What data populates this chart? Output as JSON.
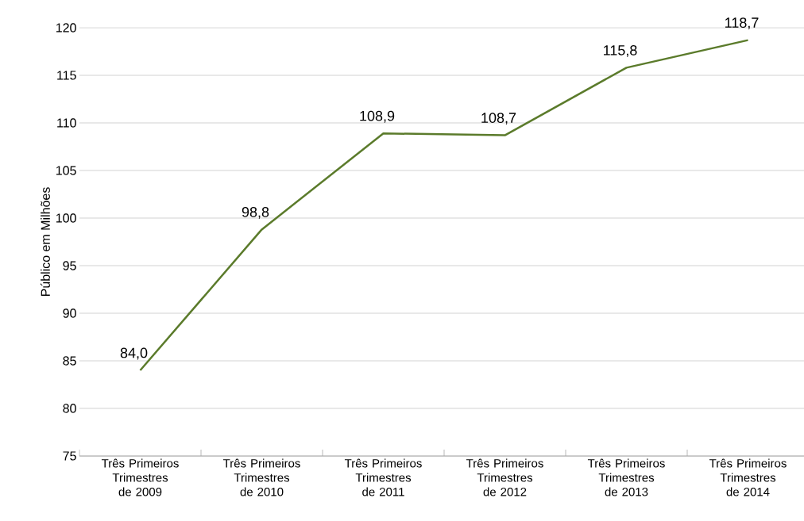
{
  "chart_data": {
    "type": "line",
    "ylabel": "Público em Milhões",
    "categories": [
      "Três Primeiros Trimestres de 2009",
      "Três Primeiros Trimestres de 2010",
      "Três Primeiros Trimestres de 2011",
      "Três Primeiros Trimestres de 2012",
      "Três Primeiros Trimestres de 2013",
      "Três Primeiros Trimestres de 2014"
    ],
    "series": [
      {
        "color": "#5b7b2b",
        "values": [
          84.0,
          98.8,
          108.9,
          108.7,
          115.8,
          118.7
        ],
        "value_labels": [
          "84,0",
          "98,8",
          "108,9",
          "108,7",
          "115,8",
          "118,7"
        ]
      }
    ],
    "ylim": [
      75,
      120
    ],
    "yticks": [
      75,
      80,
      85,
      90,
      95,
      100,
      105,
      110,
      115,
      120
    ],
    "grid": "y",
    "marker": "none",
    "line_style": "solid"
  }
}
